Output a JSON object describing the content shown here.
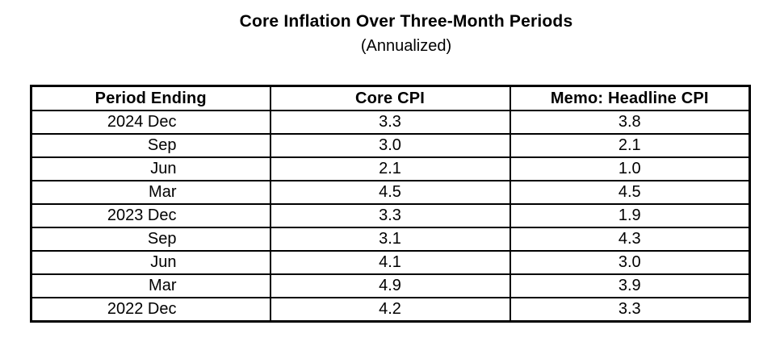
{
  "title": "Core Inflation Over Three-Month Periods",
  "subtitle": "(Annualized)",
  "table": {
    "columns": [
      "Period Ending",
      "Core CPI",
      "Memo: Headline CPI"
    ],
    "rows": [
      {
        "period": "2024 Dec",
        "core_cpi": "3.3",
        "headline_cpi": "3.8"
      },
      {
        "period": "Sep",
        "core_cpi": "3.0",
        "headline_cpi": "2.1"
      },
      {
        "period": "Jun",
        "core_cpi": "2.1",
        "headline_cpi": "1.0"
      },
      {
        "period": "Mar",
        "core_cpi": "4.5",
        "headline_cpi": "4.5"
      },
      {
        "period": "2023 Dec",
        "core_cpi": "3.3",
        "headline_cpi": "1.9"
      },
      {
        "period": "Sep",
        "core_cpi": "3.1",
        "headline_cpi": "4.3"
      },
      {
        "period": "Jun",
        "core_cpi": "4.1",
        "headline_cpi": "3.0"
      },
      {
        "period": "Mar",
        "core_cpi": "4.9",
        "headline_cpi": "3.9"
      },
      {
        "period": "2022 Dec",
        "core_cpi": "4.2",
        "headline_cpi": "3.3"
      }
    ]
  },
  "chart_data": {
    "type": "table",
    "title": "Core Inflation Over Three-Month Periods",
    "subtitle": "(Annualized)",
    "columns": [
      "Period Ending",
      "Core CPI",
      "Memo: Headline CPI"
    ],
    "categories": [
      "2024 Dec",
      "2024 Sep",
      "2024 Jun",
      "2024 Mar",
      "2023 Dec",
      "2023 Sep",
      "2023 Jun",
      "2023 Mar",
      "2022 Dec"
    ],
    "series": [
      {
        "name": "Core CPI",
        "values": [
          3.3,
          3.0,
          2.1,
          4.5,
          3.3,
          3.1,
          4.1,
          4.9,
          4.2
        ]
      },
      {
        "name": "Memo: Headline CPI",
        "values": [
          3.8,
          2.1,
          1.0,
          4.5,
          1.9,
          4.3,
          3.0,
          3.9,
          3.3
        ]
      }
    ]
  },
  "colors": {
    "text": "#000000",
    "border": "#000000",
    "background": "#ffffff"
  }
}
